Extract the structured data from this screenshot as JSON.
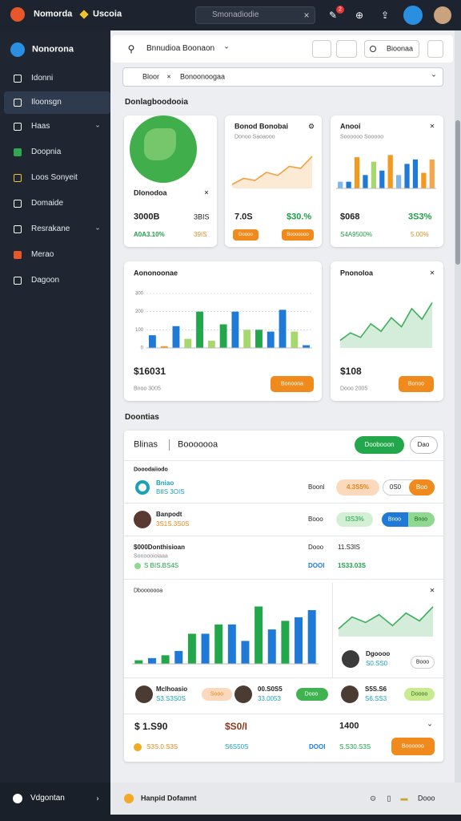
{
  "top_bar": {
    "brand": "Nomorda",
    "brand2": "Uscoia",
    "search": "Smonadiodie",
    "badge": "2"
  },
  "sidebar": {
    "title": "Nonorona",
    "items": [
      "Idonni",
      "Iloonsgn",
      "Haas",
      "Doopnia",
      "Loos Sonyeit",
      "Domaide",
      "Resrakane",
      "Merao",
      "Dagoon"
    ],
    "footer": "Vdgontan"
  },
  "toolbar": {
    "selector": "Bnnudioa Boonaon",
    "button": "Bioonaa"
  },
  "filter": {
    "tag": "Bloor",
    "value": "Bonoonoogaa"
  },
  "overview": {
    "title": "Donlagboodooia",
    "cards": [
      {
        "title": "Dlonodoa",
        "value": "3000B",
        "value2": "3BIS",
        "change": "A0A3.10%",
        "change2": "39IS"
      },
      {
        "title": "Bonod Bonobai",
        "subtitle": "Donoo Saoaooo",
        "value": "7.0S",
        "change": "$30.%",
        "button1": "Doooo",
        "button2": "Booooooo",
        "chart": {
          "type": "area",
          "values": [
            4,
            10,
            8,
            16,
            13,
            22,
            20,
            32
          ],
          "ylim": [
            0,
            40
          ],
          "color": "#f0a040"
        }
      },
      {
        "title": "Anooi",
        "subtitle": "Soooooo Sooooo",
        "value": "$068",
        "change": "3S3%",
        "note": "S4A9500%",
        "note2": "5.00%",
        "chart": {
          "type": "bar",
          "values": [
            3,
            3,
            14,
            6,
            12,
            8,
            15,
            6,
            11,
            13,
            7,
            13
          ],
          "ylim": [
            0,
            18
          ],
          "colors": [
            "#7fb8e8",
            "#1e7ad6",
            "#f39a1e",
            "#1e7ad6",
            "#a6d86e",
            "#1e7ad6",
            "#f39a1e",
            "#7fb8e8",
            "#1e7ad6",
            "#1e7ad6",
            "#f39a1e",
            "#f3a64a"
          ]
        }
      },
      {
        "title": "Aononoonae",
        "value": "$16031",
        "subtitle": "Bnoo 3005",
        "button": "Bonoona",
        "chart": {
          "type": "bar",
          "values": [
            70,
            10,
            120,
            50,
            200,
            40,
            130,
            200,
            100,
            100,
            90,
            210,
            90,
            15
          ],
          "ylim": [
            0,
            300
          ],
          "yticks": [
            0,
            100,
            200,
            300
          ],
          "colors": [
            "#1e7ad6",
            "#f39a1e",
            "#1e7ad6",
            "#a6d86e",
            "#22a84a",
            "#a6d86e",
            "#22a84a",
            "#1e7ad6",
            "#a6d86e",
            "#22a84a",
            "#1e7ad6",
            "#1e7ad6",
            "#a6d86e",
            "#1e7ad6"
          ]
        }
      },
      {
        "title": "Pnonoloa",
        "value": "$108",
        "subtitle": "Dooo 2005",
        "button": "Bonoo",
        "chart": {
          "type": "area",
          "values": [
            10,
            20,
            14,
            32,
            22,
            40,
            28,
            52,
            38,
            60
          ],
          "ylim": [
            0,
            70
          ],
          "color": "#3dae5a"
        }
      }
    ]
  },
  "details": {
    "title": "Doontias",
    "tab1": "Blinas",
    "tab2": "Booooooa",
    "button": "Doobooon",
    "button2": "Dao",
    "group": "Dooodaiiodo",
    "row1": {
      "name": "Bniao",
      "sub": "BIIS 3OIS",
      "label": "Boonl",
      "pill": "4.3S5%",
      "toggle1": "0S0",
      "toggle2": "Boo"
    },
    "row2": {
      "name": "Banpodt",
      "sub": "3S1S.3S0S",
      "label": "Booo",
      "pill": "I3S3%",
      "toggle1": "Bnoo",
      "toggle2": "Bnoo"
    },
    "row3": {
      "name": "$000Donthisioan",
      "sub": "Sonoooioiaaa",
      "amount": "S BIS.BS4S",
      "label1": "Dooo",
      "value1": "11.S3IS",
      "label2": "DOOI",
      "value2": "1S33.03S"
    },
    "row4": {
      "title": "Dbooooooa",
      "chart": {
        "type": "bar",
        "values": [
          5,
          8,
          12,
          18,
          42,
          42,
          55,
          55,
          32,
          80,
          48,
          60,
          65,
          75
        ],
        "ylim": [
          0,
          85
        ],
        "colors": [
          "#22a84a",
          "#1e7ad6",
          "#22a84a",
          "#1e7ad6",
          "#22a84a",
          "#1e7ad6",
          "#22a84a",
          "#1e7ad6",
          "#1e7ad6",
          "#22a84a",
          "#1e7ad6",
          "#22a84a",
          "#1e7ad6",
          "#1e7ad6"
        ]
      },
      "side_chart": {
        "type": "area",
        "values": [
          10,
          25,
          18,
          28,
          14,
          30,
          20,
          38
        ],
        "ylim": [
          0,
          45
        ],
        "color": "#3dae5a"
      },
      "person": "Dgoooo",
      "person_value": "S0.SS0",
      "button": "Booo"
    },
    "row5": [
      {
        "name": "Mclhoasio",
        "value": "S3.S3S0S",
        "pill": "Sooo"
      },
      {
        "name": "00.S0S5",
        "value": "33.0053",
        "pill": "Dooo"
      },
      {
        "name": "S5S.S6",
        "value": "S6.SS3",
        "pill": "Doooo"
      }
    ],
    "totals": {
      "v1": "$ 1.S90",
      "v2": "$S0/I",
      "v3": "1400",
      "s1": "S3S.0.S3S",
      "s2": "S6S50S",
      "s3label": "DOOI",
      "s3": "S.S30.S3S",
      "button": "Boooooo"
    }
  },
  "footer": {
    "text": "Hanpid Dofamnt",
    "right": "Dooo"
  }
}
